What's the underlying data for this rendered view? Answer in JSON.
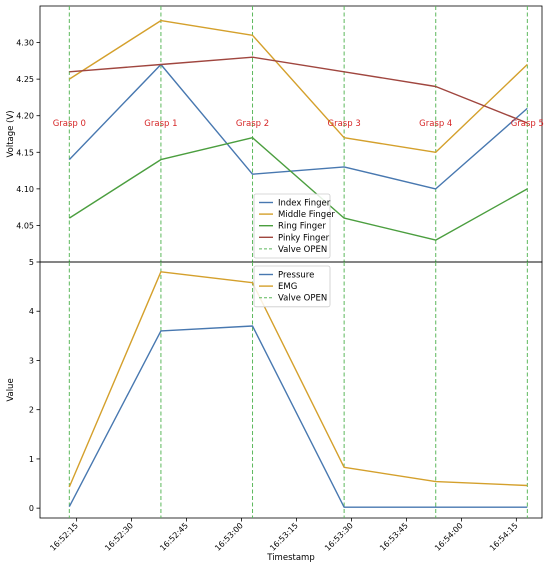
{
  "chart_data": [
    {
      "type": "line",
      "title": "",
      "xlabel": "",
      "ylabel": "Voltage (V)",
      "ylim": [
        4.0,
        4.35
      ],
      "yticks": [
        4.05,
        4.1,
        4.15,
        4.2,
        4.25,
        4.3
      ],
      "ytick_labels": [
        "4.05",
        "4.10",
        "4.15",
        "4.20",
        "4.25",
        "4.30"
      ],
      "x": [
        "16:52:13",
        "16:52:38",
        "16:53:03",
        "16:53:28",
        "16:53:53",
        "16:54:18"
      ],
      "series": [
        {
          "name": "Index Finger",
          "color": "#4878b0",
          "values": [
            4.14,
            4.27,
            4.12,
            4.13,
            4.1,
            4.21
          ]
        },
        {
          "name": "Middle Finger",
          "color": "#d4a02c",
          "values": [
            4.25,
            4.33,
            4.31,
            4.17,
            4.15,
            4.27
          ]
        },
        {
          "name": "Ring Finger",
          "color": "#4b9e3f",
          "values": [
            4.06,
            4.14,
            4.17,
            4.06,
            4.03,
            4.1
          ]
        },
        {
          "name": "Pinky Finger",
          "color": "#a0463f",
          "values": [
            4.26,
            4.27,
            4.28,
            4.26,
            4.24,
            4.19
          ]
        }
      ],
      "valve_label": "Valve OPEN",
      "valve_color": "#5cb85c",
      "annotations": [
        "Grasp 0",
        "Grasp 1",
        "Grasp 2",
        "Grasp 3",
        "Grasp 4",
        "Grasp 5"
      ],
      "annotation_value": 4.19,
      "annotation_color": "#d62728",
      "legend": "lower-center",
      "grid": false
    },
    {
      "type": "line",
      "title": "",
      "xlabel": "Timestamp",
      "ylabel": "Value",
      "ylim": [
        -0.2,
        5.0
      ],
      "yticks": [
        0,
        1,
        2,
        3,
        4,
        5
      ],
      "ytick_labels": [
        "0",
        "1",
        "2",
        "3",
        "4",
        "5"
      ],
      "x": [
        "16:52:13",
        "16:52:38",
        "16:53:03",
        "16:53:28",
        "16:53:53",
        "16:54:18"
      ],
      "xticks": [
        "16:52:15",
        "16:52:30",
        "16:52:45",
        "16:53:00",
        "16:53:15",
        "16:53:30",
        "16:53:45",
        "16:54:00",
        "16:54:15"
      ],
      "series": [
        {
          "name": "Pressure",
          "color": "#4878b0",
          "values": [
            0.03,
            3.6,
            3.7,
            0.02,
            0.02,
            0.02
          ]
        },
        {
          "name": "EMG",
          "color": "#d4a02c",
          "values": [
            0.43,
            4.8,
            4.58,
            0.83,
            0.54,
            0.46
          ]
        }
      ],
      "valve_label": "Valve OPEN",
      "valve_color": "#5cb85c",
      "legend": "top-center",
      "grid": false
    }
  ]
}
